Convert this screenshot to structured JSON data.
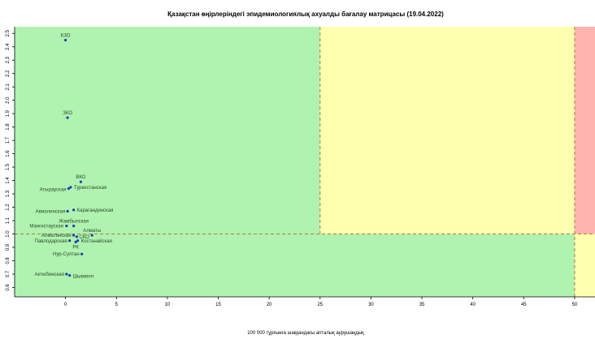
{
  "chart_data": {
    "type": "scatter",
    "title": "Қазақстан өңірлеріндегі эпидемиологиялық ахуалды бағалау матрицасы  (19.04.2022)",
    "xlabel": "100 000 тұрғынға шаққандағы апталық аурушаңдық",
    "ylabel": "",
    "xlim": [
      -5,
      52
    ],
    "ylim": [
      0.53,
      2.55
    ],
    "x_ticks": [
      0,
      5,
      10,
      15,
      20,
      25,
      30,
      35,
      40,
      45,
      50
    ],
    "y_ticks": [
      0.6,
      0.7,
      0.8,
      0.9,
      1.0,
      1.1,
      1.2,
      1.3,
      1.4,
      1.5,
      1.6,
      1.7,
      1.8,
      1.9,
      2.0,
      2.1,
      2.2,
      2.3,
      2.4,
      2.5
    ],
    "thresholds": {
      "x": [
        25,
        50
      ],
      "y": 1.0
    },
    "zone_colors": {
      "green": "#b0f2b0",
      "yellow": "#ffffb0",
      "red": "#ffb4b0",
      "point": "#1a3fb0",
      "dashed_line": "#b07a40"
    },
    "points": [
      {
        "label": "КЗО",
        "x": 0.0,
        "y": 2.45
      },
      {
        "label": "ЗКО",
        "x": 0.2,
        "y": 1.87
      },
      {
        "label": "ВКО",
        "x": 1.5,
        "y": 1.39
      },
      {
        "label": "Туркестанская",
        "x": 0.5,
        "y": 1.35
      },
      {
        "label": "Атырауская",
        "x": 0.3,
        "y": 1.34
      },
      {
        "label": "Карагандинская",
        "x": 0.8,
        "y": 1.18
      },
      {
        "label": "Акмолинская",
        "x": 0.2,
        "y": 1.17
      },
      {
        "label": "Жамбылская",
        "x": 0.8,
        "y": 1.06
      },
      {
        "label": "Мангистауская",
        "x": 0.1,
        "y": 1.06
      },
      {
        "label": "Алматы",
        "x": 2.6,
        "y": 0.99
      },
      {
        "label": "Алматинская",
        "x": 0.8,
        "y": 0.99
      },
      {
        "label": "СКО",
        "x": 1.1,
        "y": 0.98
      },
      {
        "label": "Костанайская",
        "x": 1.2,
        "y": 0.95
      },
      {
        "label": "Павлодарская",
        "x": 0.4,
        "y": 0.95
      },
      {
        "label": "РК",
        "x": 1.0,
        "y": 0.94
      },
      {
        "label": "Нур-Султан",
        "x": 1.6,
        "y": 0.85
      },
      {
        "label": "Актюбинская",
        "x": 0.1,
        "y": 0.7
      },
      {
        "label": "Шымкент",
        "x": 0.4,
        "y": 0.69
      }
    ]
  }
}
